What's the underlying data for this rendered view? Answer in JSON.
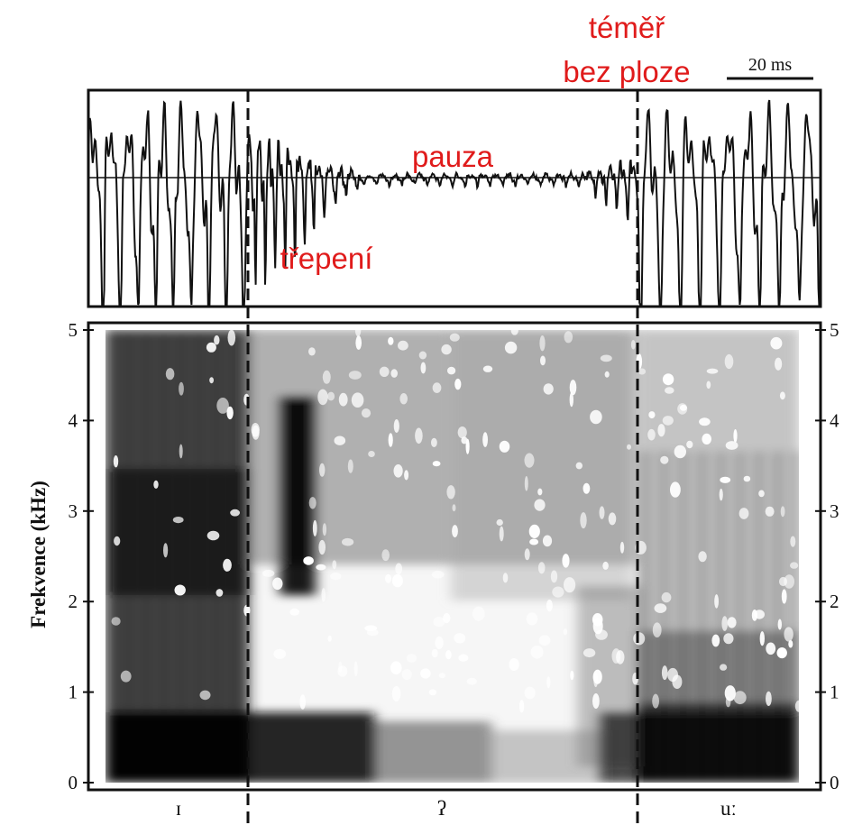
{
  "waveform": {
    "annotations": {
      "fray": "třepení",
      "pause": "pauza",
      "near_no_fry_line1": "téměř",
      "near_no_fry_line2": "bez ploze"
    },
    "scale_bar_label": "20 ms"
  },
  "spectrogram": {
    "y_axis_title": "Frekvence (kHz)",
    "y_ticks_left": [
      "0",
      "1",
      "2",
      "3",
      "4",
      "5"
    ],
    "y_ticks_right": [
      "0",
      "1",
      "2",
      "3",
      "4",
      "5"
    ],
    "y_range_khz": [
      0,
      5
    ]
  },
  "segments": [
    {
      "label": "ɪ"
    },
    {
      "label": "ʔ"
    },
    {
      "label": "uː"
    }
  ],
  "colors": {
    "annotation": "#e01b1b",
    "frame": "#111111"
  }
}
